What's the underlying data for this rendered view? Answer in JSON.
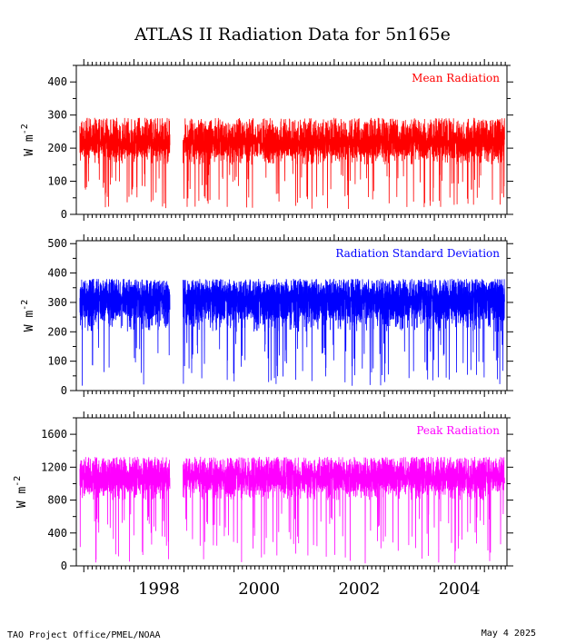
{
  "title": "ATLAS II Radiation Data for 5n165e",
  "footer": {
    "left": "TAO Project Office/PMEL/NOAA",
    "right": "May  4 2025"
  },
  "xaxis": {
    "range": [
      1996.85,
      2005.45
    ],
    "tick_labels": [
      "1998",
      "2000",
      "2002",
      "2004"
    ],
    "tick_values": [
      1998,
      2000,
      2002,
      2004
    ]
  },
  "chart_data": [
    {
      "type": "line",
      "title": "",
      "label": "Mean Radiation",
      "ylabel": "W m-2",
      "color": "#ff0000",
      "ylim": [
        0,
        450
      ],
      "yticks": [
        0,
        100,
        200,
        300,
        400
      ],
      "ytick_labels": [
        "0",
        "100",
        "200",
        "300",
        "400"
      ],
      "baseline": 230,
      "low_mean": 150,
      "low_min": 15,
      "high_max": 340,
      "gaps": [
        [
          1998.72,
          1998.98
        ]
      ]
    },
    {
      "type": "line",
      "title": "",
      "label": "Radiation Standard Deviation",
      "ylabel": "W m-2",
      "color": "#0000ff",
      "ylim": [
        0,
        510
      ],
      "yticks": [
        0,
        100,
        200,
        300,
        400,
        500
      ],
      "ytick_labels": [
        "0",
        "100",
        "200",
        "300",
        "400",
        "500"
      ],
      "baseline": 330,
      "low_mean": 200,
      "low_min": 15,
      "high_max": 420,
      "gaps": [
        [
          1998.72,
          1998.98
        ]
      ]
    },
    {
      "type": "line",
      "title": "",
      "label": "Peak Radiation",
      "ylabel": "W m-2",
      "color": "#ff00ff",
      "ylim": [
        0,
        1800
      ],
      "yticks": [
        0,
        400,
        800,
        1200,
        1600
      ],
      "ytick_labels": [
        "0",
        "400",
        "800",
        "1200",
        "1600"
      ],
      "baseline": 1130,
      "low_mean": 800,
      "low_min": 30,
      "high_max": 1480,
      "gaps": [
        [
          1998.72,
          1998.98
        ]
      ]
    }
  ]
}
